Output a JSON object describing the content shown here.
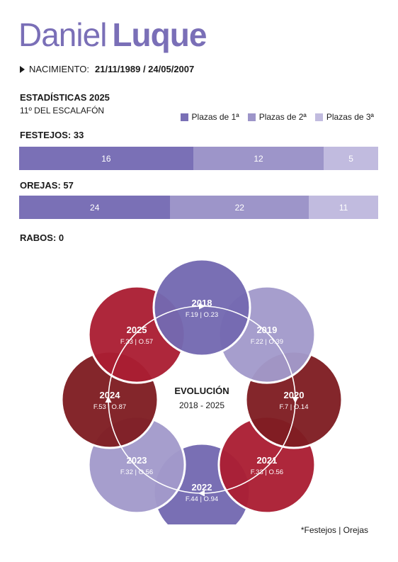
{
  "header": {
    "first_name": "Daniel",
    "last_name": "Luque",
    "birth_label": "NACIMIENTO:",
    "birth_dates": "21/11/1989 / 24/05/2007"
  },
  "stats": {
    "title": "ESTADÍSTICAS 2025",
    "rank": "11º DEL ESCALAFÓN",
    "rabos_label": "RABOS: 0"
  },
  "colors": {
    "first": "#7a70b6",
    "second": "#9d95c9",
    "third": "#c1bbdf",
    "ring": "#ffffff"
  },
  "chart_data": [
    {
      "type": "bar",
      "orientation": "horizontal-stacked",
      "title": "FESTEJOS: 33",
      "series": [
        {
          "name": "Plazas de 1ª",
          "values": [
            16
          ]
        },
        {
          "name": "Plazas de 2ª",
          "values": [
            12
          ]
        },
        {
          "name": "Plazas de 3ª",
          "values": [
            5
          ]
        }
      ],
      "legend": "top-right"
    },
    {
      "type": "bar",
      "orientation": "horizontal-stacked",
      "title": "OREJAS: 57",
      "series": [
        {
          "name": "Plazas de 1ª",
          "values": [
            24
          ]
        },
        {
          "name": "Plazas de 2ª",
          "values": [
            22
          ]
        },
        {
          "name": "Plazas de 3ª",
          "values": [
            11
          ]
        }
      ]
    },
    {
      "type": "scatter",
      "title": "EVOLUCIÓN",
      "subtitle": "2018 - 2025",
      "note": "*Festejos | Orejas",
      "points": [
        {
          "year": "2018",
          "label": "F.19 | O.23",
          "color": "#7469b1"
        },
        {
          "year": "2019",
          "label": "F.22 | O.39",
          "color": "#a29acb"
        },
        {
          "year": "2020",
          "label": "F.7 | O.14",
          "color": "#7f1d22"
        },
        {
          "year": "2021",
          "label": "F.33 | O.56",
          "color": "#ab1e33"
        },
        {
          "year": "2022",
          "label": "F.44 | O.94",
          "color": "#7469b1"
        },
        {
          "year": "2023",
          "label": "F.32 | O.56",
          "color": "#a29acb"
        },
        {
          "year": "2024",
          "label": "F.53 | O.87",
          "color": "#7f1d22"
        },
        {
          "year": "2025",
          "label": "F.33 | O.57",
          "color": "#ab1e33"
        }
      ]
    }
  ]
}
